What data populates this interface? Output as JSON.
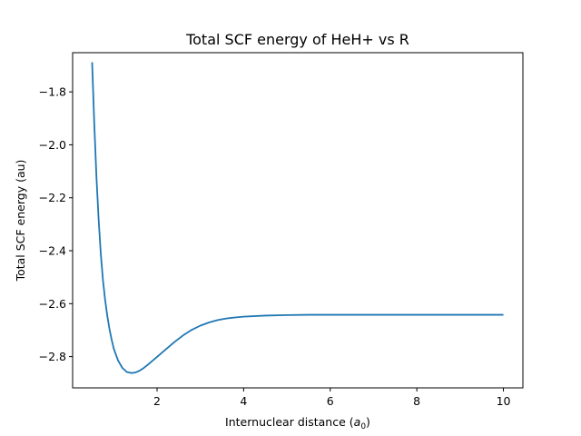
{
  "chart_data": {
    "type": "line",
    "title": "Total SCF energy of HeH+ vs R",
    "xlabel": "Internuclear distance (",
    "xlabel_symbol": "a",
    "xlabel_subscript": "0",
    "xlabel_suffix": ")",
    "ylabel": "Total SCF energy (au)",
    "xlim": [
      0.05,
      10.45
    ],
    "ylim": [
      -2.918,
      -1.652
    ],
    "xticks": [
      2,
      4,
      6,
      8,
      10
    ],
    "xtick_labels": [
      "2",
      "4",
      "6",
      "8",
      "10"
    ],
    "yticks": [
      -2.8,
      -2.6,
      -2.4,
      -2.2,
      -2.0,
      -1.8
    ],
    "ytick_labels": [
      "−2.8",
      "−2.6",
      "−2.4",
      "−2.2",
      "−2.0",
      "−1.8"
    ],
    "grid": false,
    "series": [
      {
        "color": "#1f77b4",
        "x": [
          0.5,
          0.55,
          0.6,
          0.65,
          0.7,
          0.75,
          0.8,
          0.85,
          0.9,
          0.95,
          1.0,
          1.1,
          1.2,
          1.3,
          1.4,
          1.5,
          1.6,
          1.7,
          1.8,
          1.9,
          2.0,
          2.2,
          2.4,
          2.6,
          2.8,
          3.0,
          3.2,
          3.4,
          3.6,
          3.8,
          4.0,
          4.5,
          5.0,
          5.5,
          6.0,
          7.0,
          8.0,
          9.0,
          10.0
        ],
        "y": [
          -1.688,
          -1.92,
          -2.12,
          -2.28,
          -2.41,
          -2.51,
          -2.585,
          -2.645,
          -2.695,
          -2.735,
          -2.77,
          -2.815,
          -2.843,
          -2.858,
          -2.862,
          -2.86,
          -2.853,
          -2.842,
          -2.829,
          -2.815,
          -2.801,
          -2.773,
          -2.745,
          -2.72,
          -2.699,
          -2.683,
          -2.671,
          -2.662,
          -2.656,
          -2.652,
          -2.649,
          -2.645,
          -2.643,
          -2.642,
          -2.642,
          -2.642,
          -2.642,
          -2.642,
          -2.642
        ]
      }
    ]
  }
}
